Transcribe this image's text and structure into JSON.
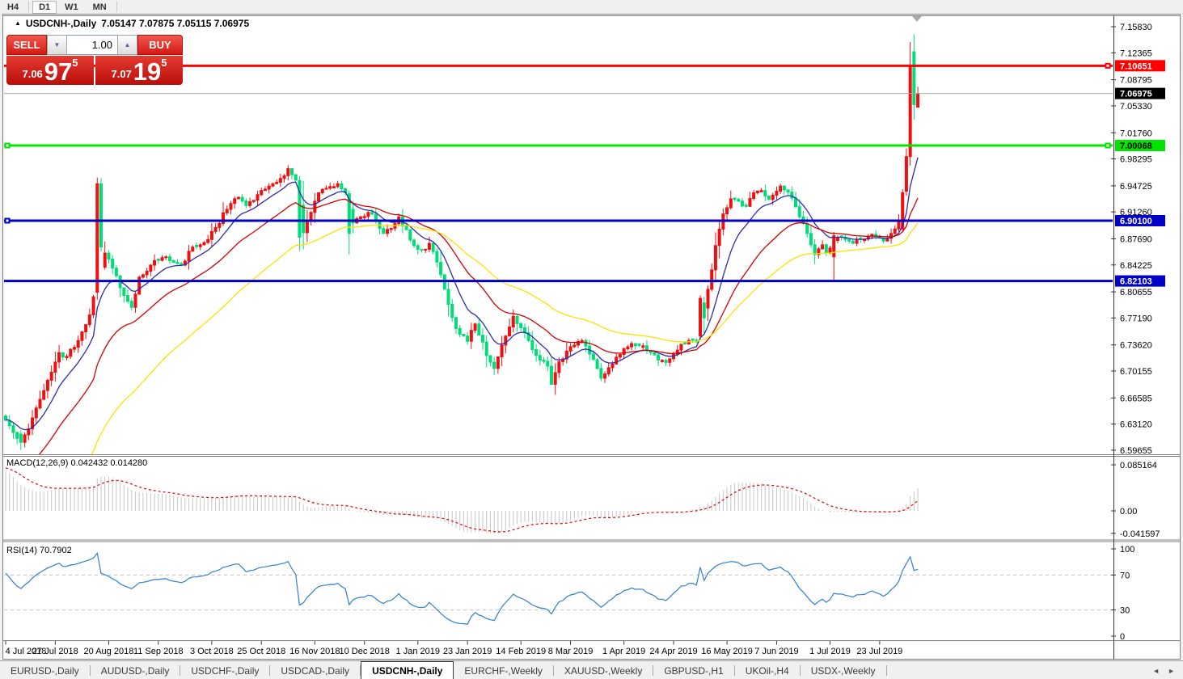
{
  "toolbar": {
    "timeframes": [
      {
        "label": "H4",
        "active": false
      },
      {
        "label": "D1",
        "active": true
      },
      {
        "label": "W1",
        "active": false
      },
      {
        "label": "MN",
        "active": false
      }
    ]
  },
  "chart_header": {
    "collapse_marker": "▲",
    "symbol": "USDCNH-,Daily",
    "ohlc": "7.05147 7.07875 7.05115 7.06975"
  },
  "trade_widget": {
    "sell_label": "SELL",
    "buy_label": "BUY",
    "volume": "1.00",
    "spinner_down": "▼",
    "spinner_up": "▲",
    "sell_price": {
      "small": "7.06",
      "big": "97",
      "sup": "5"
    },
    "buy_price": {
      "small": "7.07",
      "big": "19",
      "sup": "5"
    }
  },
  "chart_data": {
    "type": "candlestick",
    "symbol": "USDCNH-",
    "timeframe": "Daily",
    "last_ohlc": {
      "open": 7.05147,
      "high": 7.07875,
      "low": 7.05115,
      "close": 7.06975
    },
    "n_candles": 240,
    "up_color": "#EE1010",
    "down_color": "#00DC78",
    "close_anchors": [
      [
        0,
        6.636
      ],
      [
        2,
        6.62
      ],
      [
        4,
        6.607
      ],
      [
        6,
        6.625
      ],
      [
        9,
        6.664
      ],
      [
        12,
        6.7
      ],
      [
        14,
        6.726
      ],
      [
        16,
        6.721
      ],
      [
        19,
        6.742
      ],
      [
        22,
        6.776
      ],
      [
        23,
        6.8
      ],
      [
        26,
        6.858
      ],
      [
        28,
        6.838
      ],
      [
        30,
        6.812
      ],
      [
        32,
        6.794
      ],
      [
        33,
        6.786
      ],
      [
        35,
        6.826
      ],
      [
        38,
        6.842
      ],
      [
        41,
        6.852
      ],
      [
        43,
        6.848
      ],
      [
        46,
        6.842
      ],
      [
        49,
        6.866
      ],
      [
        52,
        6.872
      ],
      [
        55,
        6.892
      ],
      [
        58,
        6.916
      ],
      [
        61,
        6.932
      ],
      [
        63,
        6.921
      ],
      [
        65,
        6.928
      ],
      [
        67,
        6.941
      ],
      [
        70,
        6.95
      ],
      [
        72,
        6.957
      ],
      [
        74,
        6.97
      ],
      [
        75,
        6.962
      ],
      [
        76,
        6.955
      ],
      [
        78,
        6.885
      ],
      [
        80,
        6.912
      ],
      [
        82,
        6.938
      ],
      [
        84,
        6.944
      ],
      [
        87,
        6.95
      ],
      [
        89,
        6.938
      ],
      [
        91,
        6.898
      ],
      [
        93,
        6.906
      ],
      [
        95,
        6.912
      ],
      [
        97,
        6.901
      ],
      [
        99,
        6.884
      ],
      [
        101,
        6.891
      ],
      [
        103,
        6.906
      ],
      [
        105,
        6.889
      ],
      [
        107,
        6.868
      ],
      [
        109,
        6.862
      ],
      [
        111,
        6.871
      ],
      [
        113,
        6.846
      ],
      [
        115,
        6.81
      ],
      [
        116,
        6.79
      ],
      [
        118,
        6.758
      ],
      [
        120,
        6.748
      ],
      [
        121,
        6.741
      ],
      [
        123,
        6.764
      ],
      [
        125,
        6.74
      ],
      [
        126,
        6.722
      ],
      [
        128,
        6.705
      ],
      [
        130,
        6.736
      ],
      [
        132,
        6.76
      ],
      [
        133,
        6.774
      ],
      [
        135,
        6.759
      ],
      [
        137,
        6.742
      ],
      [
        138,
        6.73
      ],
      [
        140,
        6.716
      ],
      [
        142,
        6.708
      ],
      [
        143,
        6.684
      ],
      [
        145,
        6.714
      ],
      [
        147,
        6.728
      ],
      [
        149,
        6.736
      ],
      [
        151,
        6.742
      ],
      [
        153,
        6.724
      ],
      [
        155,
        6.705
      ],
      [
        156,
        6.692
      ],
      [
        158,
        6.706
      ],
      [
        160,
        6.72
      ],
      [
        162,
        6.731
      ],
      [
        164,
        6.738
      ],
      [
        167,
        6.735
      ],
      [
        169,
        6.726
      ],
      [
        171,
        6.716
      ],
      [
        173,
        6.713
      ],
      [
        175,
        6.724
      ],
      [
        177,
        6.737
      ],
      [
        179,
        6.742
      ],
      [
        181,
        6.74
      ],
      [
        184,
        6.81
      ],
      [
        186,
        6.868
      ],
      [
        188,
        6.91
      ],
      [
        190,
        6.93
      ],
      [
        192,
        6.927
      ],
      [
        194,
        6.92
      ],
      [
        196,
        6.938
      ],
      [
        198,
        6.941
      ],
      [
        200,
        6.929
      ],
      [
        202,
        6.94
      ],
      [
        203,
        6.947
      ],
      [
        205,
        6.939
      ],
      [
        206,
        6.931
      ],
      [
        208,
        6.906
      ],
      [
        210,
        6.884
      ],
      [
        212,
        6.856
      ],
      [
        214,
        6.869
      ],
      [
        215,
        6.858
      ],
      [
        218,
        6.879
      ],
      [
        220,
        6.876
      ],
      [
        222,
        6.871
      ],
      [
        224,
        6.876
      ],
      [
        226,
        6.88
      ],
      [
        228,
        6.88
      ],
      [
        230,
        6.874
      ],
      [
        232,
        6.884
      ],
      [
        233,
        6.89
      ],
      [
        234,
        6.901
      ],
      [
        235,
        6.938
      ],
      [
        236,
        6.985
      ],
      [
        237,
        7.105
      ],
      [
        238,
        7.055
      ],
      [
        239,
        7.06975
      ]
    ],
    "candle_overrides": {
      "4": [
        6.618,
        6.623,
        6.597,
        6.607
      ],
      "24": [
        6.806,
        6.958,
        6.796,
        6.95
      ],
      "25": [
        6.95,
        6.957,
        6.86,
        6.866
      ],
      "77": [
        6.954,
        6.96,
        6.861,
        6.879
      ],
      "90": [
        6.937,
        6.941,
        6.856,
        6.884
      ],
      "182": [
        6.748,
        6.802,
        6.742,
        6.798
      ],
      "183": [
        6.792,
        6.8,
        6.752,
        6.772
      ],
      "217": [
        6.853,
        6.886,
        6.822,
        6.881
      ],
      "235": [
        6.89,
        6.943,
        6.886,
        6.938
      ],
      "236": [
        6.94,
        6.997,
        6.934,
        6.986
      ],
      "237": [
        6.986,
        7.138,
        6.974,
        7.105
      ],
      "238": [
        7.125,
        7.148,
        7.035,
        7.055
      ],
      "239": [
        7.05147,
        7.07875,
        7.05115,
        7.06975
      ]
    },
    "moving_averages": [
      {
        "period": 10,
        "color": "#2C2CB0",
        "seed": 6.638
      },
      {
        "period": 26,
        "color": "#D40000",
        "seed": 6.545
      },
      {
        "period": 52,
        "color": "#FFE100",
        "seed": 6.43
      }
    ],
    "horizontal_levels": [
      {
        "price": 7.10651,
        "label": "7.10651",
        "color": "#FF0000",
        "text_color": "#FFFFFF",
        "marker": "right"
      },
      {
        "price": 7.00068,
        "label": "7.00068",
        "color": "#00E400",
        "text_color": "#000000",
        "marker": "both"
      },
      {
        "price": 6.901,
        "label": "6.90100",
        "color": "#0000C8",
        "text_color": "#FFFFFF",
        "marker": "left"
      },
      {
        "price": 6.82103,
        "label": "6.82103",
        "color": "#0000C8",
        "text_color": "#FFFFFF",
        "marker": "none"
      }
    ],
    "current_price": {
      "value": 7.06975,
      "label": "7.06975",
      "line_color": "#A8A8A8",
      "badge_bg": "#000000",
      "badge_fg": "#FFFFFF"
    },
    "price_axis_ticks": [
      "7.15830",
      "7.12365",
      "7.08795",
      "7.05330",
      "7.01760",
      "6.98295",
      "6.94725",
      "6.91260",
      "6.87690",
      "6.84225",
      "6.80655",
      "6.77190",
      "6.73620",
      "6.70155",
      "6.66585",
      "6.63120",
      "6.59655"
    ],
    "price_range": {
      "max": 7.1712,
      "min": 6.5922
    },
    "date_labels": [
      {
        "i": 0,
        "text": "4 Jul 2018"
      },
      {
        "i": 13,
        "text": "27 Jul 2018"
      },
      {
        "i": 27,
        "text": "20 Aug 2018"
      },
      {
        "i": 40,
        "text": "11 Sep 2018"
      },
      {
        "i": 54,
        "text": "3 Oct 2018"
      },
      {
        "i": 67,
        "text": "25 Oct 2018"
      },
      {
        "i": 81,
        "text": "16 Nov 2018"
      },
      {
        "i": 94,
        "text": "10 Dec 2018"
      },
      {
        "i": 108,
        "text": "1 Jan 2019"
      },
      {
        "i": 121,
        "text": "23 Jan 2019"
      },
      {
        "i": 135,
        "text": "14 Feb 2019"
      },
      {
        "i": 148,
        "text": "8 Mar 2019"
      },
      {
        "i": 162,
        "text": "1 Apr 2019"
      },
      {
        "i": 175,
        "text": "24 Apr 2019"
      },
      {
        "i": 189,
        "text": "16 May 2019"
      },
      {
        "i": 202,
        "text": "7 Jun 2019"
      },
      {
        "i": 216,
        "text": "1 Jul 2019"
      },
      {
        "i": 229,
        "text": "23 Jul 2019"
      }
    ],
    "macd": {
      "label": "MACD(12,26,9) 0.042432 0.014280",
      "fast": 12,
      "slow": 26,
      "signal_period": 9,
      "value": 0.042432,
      "signal_value": 0.01428,
      "axis_ticks": [
        {
          "v": 0.085164,
          "text": "0.085164"
        },
        {
          "v": 0,
          "text": "0.00"
        },
        {
          "v": -0.041597,
          "text": "-0.041597"
        }
      ],
      "histogram_color": "#C6C6C6",
      "signal_color": "#E00000"
    },
    "rsi": {
      "label": "RSI(14) 70.7902",
      "period": 14,
      "value": 70.7902,
      "axis_ticks": [
        {
          "v": 100,
          "text": "100"
        },
        {
          "v": 70,
          "text": "70"
        },
        {
          "v": 30,
          "text": "30"
        },
        {
          "v": 0,
          "text": "0"
        }
      ],
      "levels": [
        70,
        30
      ],
      "line_color": "#2E7FD0",
      "level_color": "#C0C0C0"
    }
  },
  "tabs": {
    "items": [
      "EURUSD-,Daily",
      "AUDUSD-,Daily",
      "USDCHF-,Daily",
      "USDCAD-,Daily",
      "USDCNH-,Daily",
      "EURCHF-,Weekly",
      "XAUUSD-,Weekly",
      "GBPUSD-,H1",
      "UKOil-,H4",
      "USDX-,Weekly"
    ],
    "active_index": 4,
    "scroll_left": "◄",
    "scroll_right": "►"
  }
}
